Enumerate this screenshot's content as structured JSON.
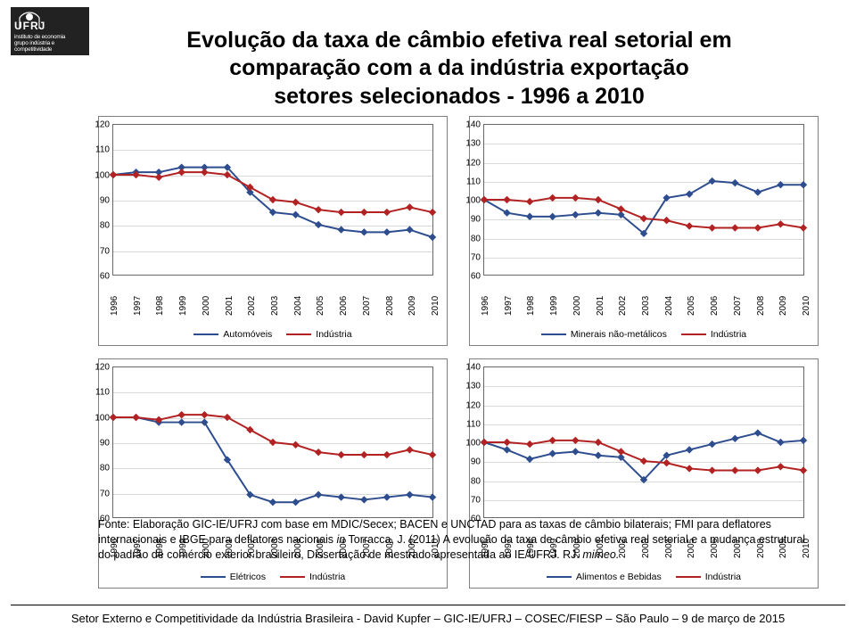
{
  "logo": {
    "bg": "#1f1f1f",
    "ufrj": "UFRJ",
    "ie": "ie",
    "line1": "instituto de economia",
    "line2": "grupo indústria e competitividade"
  },
  "title": {
    "l1": "Evolução da taxa de câmbio efetiva real setorial em",
    "l2": "comparação com a da indústria exportação",
    "l3": "setores selecionados - 1996 a 2010"
  },
  "years": [
    "1996",
    "1997",
    "1998",
    "1999",
    "2000",
    "2001",
    "2002",
    "2003",
    "2004",
    "2005",
    "2006",
    "2007",
    "2008",
    "2009",
    "2010"
  ],
  "colors": {
    "series_a": "#2e4d8f",
    "series_b": "#b22222",
    "border": "#666666",
    "grid": "#d9d9d9",
    "bg": "#ffffff"
  },
  "charts": [
    {
      "id": "automoveis",
      "ymin": 60,
      "ymax": 120,
      "ystep": 10,
      "series": [
        {
          "name": "Automóveis",
          "color": "#2e4d8f",
          "vals": [
            100,
            101,
            101,
            103,
            103,
            103,
            93,
            85,
            84,
            80,
            78,
            77,
            77,
            78,
            75
          ]
        },
        {
          "name": "Indústria",
          "color": "#b22222",
          "vals": [
            100,
            100,
            99,
            101,
            101,
            100,
            95,
            90,
            89,
            86,
            85,
            85,
            85,
            87,
            85
          ]
        }
      ]
    },
    {
      "id": "minerais",
      "ymin": 60,
      "ymax": 140,
      "ystep": 10,
      "series": [
        {
          "name": "Minerais não-metálicos",
          "color": "#2e4d8f",
          "vals": [
            100,
            93,
            91,
            91,
            92,
            93,
            92,
            82,
            101,
            103,
            110,
            109,
            104,
            108,
            108
          ]
        },
        {
          "name": "Indústria",
          "color": "#b22222",
          "vals": [
            100,
            100,
            99,
            101,
            101,
            100,
            95,
            90,
            89,
            86,
            85,
            85,
            85,
            87,
            85
          ]
        }
      ]
    },
    {
      "id": "eletricos",
      "ymin": 60,
      "ymax": 120,
      "ystep": 10,
      "series": [
        {
          "name": "Elétricos",
          "color": "#2e4d8f",
          "vals": [
            100,
            100,
            98,
            98,
            98,
            83,
            69,
            66,
            66,
            69,
            68,
            67,
            68,
            69,
            68
          ]
        },
        {
          "name": "Indústria",
          "color": "#b22222",
          "vals": [
            100,
            100,
            99,
            101,
            101,
            100,
            95,
            90,
            89,
            86,
            85,
            85,
            85,
            87,
            85
          ]
        }
      ]
    },
    {
      "id": "alimentos",
      "ymin": 60,
      "ymax": 140,
      "ystep": 10,
      "series": [
        {
          "name": "Alimentos e Bebidas",
          "color": "#2e4d8f",
          "vals": [
            100,
            96,
            91,
            94,
            95,
            93,
            92,
            80,
            93,
            96,
            99,
            102,
            105,
            100,
            101
          ]
        },
        {
          "name": "Indústria",
          "color": "#b22222",
          "vals": [
            100,
            100,
            99,
            101,
            101,
            100,
            95,
            90,
            89,
            86,
            85,
            85,
            85,
            87,
            85
          ]
        }
      ]
    }
  ],
  "font": {
    "title_pt": 25,
    "axis_pt": 10,
    "legend_pt": 10.5,
    "source_pt": 12.5,
    "footer_pt": 13
  },
  "source": {
    "t1": "Fonte: Elaboração GIC-IE/UFRJ com base em MDIC/Secex; BACEN e UNCTAD para as taxas de câmbio bilaterais; FMI para deflatores internacionais e IBGE para deflatores nacionais ",
    "t2": "in",
    "t3": " Torracca, J. (2011) A evolução da taxa de câmbio efetiva real setorial e a mudança estrutural do padrão de comércio exterior brasileiro, Dissertação de mestrado apresentada ao IE/UFRJ. RJ. ",
    "t4": "mimeo."
  },
  "footer": "Setor Externo e Competitividade da Indústria Brasileira - David Kupfer – GIC-IE/UFRJ – COSEC/FIESP – São Paulo – 9 de março de 2015"
}
